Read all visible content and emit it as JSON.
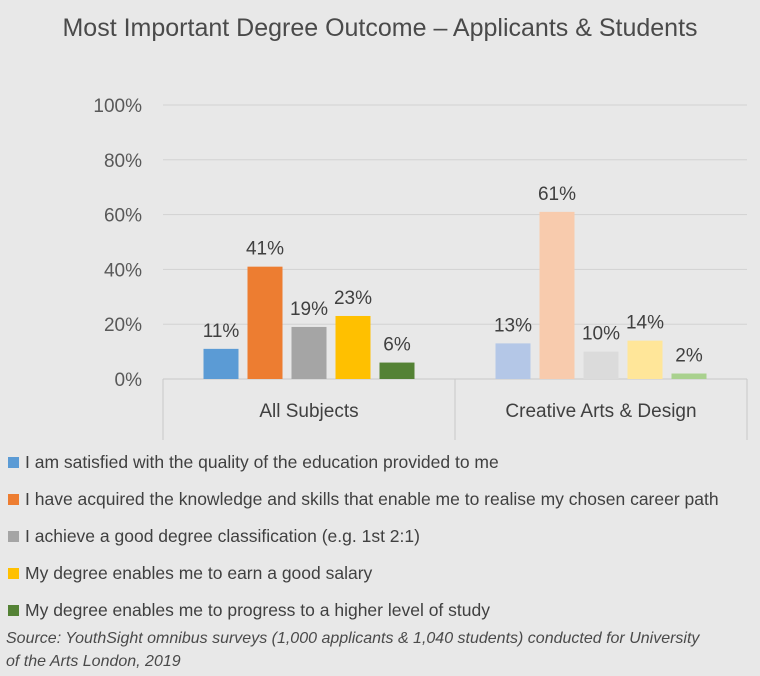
{
  "chart_data": {
    "type": "bar",
    "title": "Most Important Degree Outcome – Applicants & Students",
    "categories": [
      "All Subjects",
      "Creative Arts & Design"
    ],
    "ylim": [
      0,
      100
    ],
    "yticks": [
      "0%",
      "20%",
      "40%",
      "60%",
      "80%",
      "100%"
    ],
    "grid": true,
    "legend_position": "bottom",
    "series": [
      {
        "name": "I am satisfied with the quality of the education provided to me",
        "values": [
          11,
          13
        ],
        "labels": [
          "11%",
          "13%"
        ],
        "colors": [
          "#5b9bd5",
          "#b4c7e7"
        ],
        "legend_color": "#5b9bd5"
      },
      {
        "name": "I have acquired the knowledge and skills that enable me to realise my chosen career path",
        "values": [
          41,
          61
        ],
        "labels": [
          "41%",
          "61%"
        ],
        "colors": [
          "#ed7d31",
          "#f8cbad"
        ],
        "legend_color": "#ed7d31"
      },
      {
        "name": "I achieve a good degree classification (e.g. 1st 2:1)",
        "values": [
          19,
          10
        ],
        "labels": [
          "19%",
          "10%"
        ],
        "colors": [
          "#a5a5a5",
          "#dbdbdb"
        ],
        "legend_color": "#a5a5a5"
      },
      {
        "name": "My degree enables me to earn a good salary",
        "values": [
          23,
          14
        ],
        "labels": [
          "23%",
          "14%"
        ],
        "colors": [
          "#ffc000",
          "#ffe699"
        ],
        "legend_color": "#ffc000"
      },
      {
        "name": "My degree enables me to progress to a higher level of study",
        "values": [
          6,
          2
        ],
        "labels": [
          "6%",
          "2%"
        ],
        "colors": [
          "#548235",
          "#a9d18e"
        ],
        "legend_color": "#548235"
      }
    ],
    "source": "Source: YouthSight omnibus surveys (1,000 applicants & 1,040 students) conducted for University of the Arts London, 2019"
  }
}
